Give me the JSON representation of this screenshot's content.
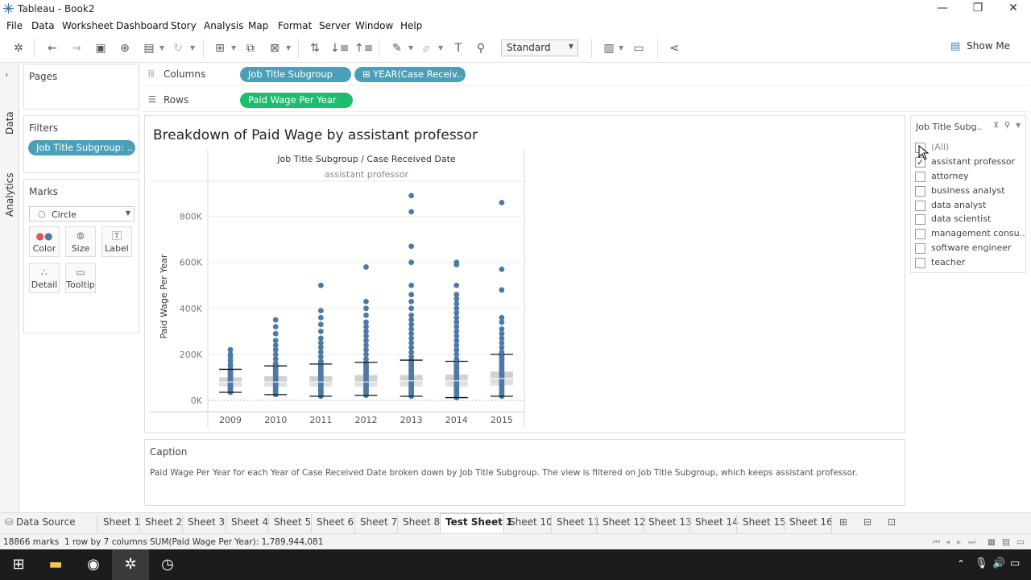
{
  "window": {
    "title": "Tableau - Book2"
  },
  "menu": [
    "File",
    "Data",
    "Worksheet",
    "Dashboard",
    "Story",
    "Analysis",
    "Map",
    "Format",
    "Server",
    "Window",
    "Help"
  ],
  "toolbar": {
    "fit": "Standard",
    "show_me": "Show Me"
  },
  "side_tabs": {
    "data": "Data",
    "analytics": "Analytics"
  },
  "cards": {
    "pages": "Pages",
    "filters": "Filters",
    "marks": "Marks"
  },
  "filter_pill": "Job Title Subgroup: ..",
  "marks": {
    "type": "Circle",
    "buttons": {
      "color": "Color",
      "size": "Size",
      "label": "Label",
      "detail": "Detail",
      "tooltip": "Tooltip"
    }
  },
  "shelves": {
    "columns_label": "Columns",
    "rows_label": "Rows",
    "columns_pills": [
      "Job Title Subgroup",
      "⊞ YEAR(Case Receiv.."
    ],
    "rows_pills": [
      "Paid Wage Per Year"
    ]
  },
  "view": {
    "title": "Breakdown of Paid Wage by assistant professor",
    "header": "Job Title Subgroup  /  Case Received Date",
    "subheader": "assistant professor"
  },
  "chart_data": {
    "type": "scatter",
    "title": "Breakdown of Paid Wage by assistant professor",
    "xlabel": "Job Title Subgroup  /  Case Received Date",
    "ylabel": "Paid Wage Per Year",
    "categories": [
      "2009",
      "2010",
      "2011",
      "2012",
      "2013",
      "2014",
      "2015"
    ],
    "y_ticks": [
      "0K",
      "200K",
      "400K",
      "600K",
      "800K"
    ],
    "ylim": [
      0,
      900000
    ],
    "grid": true,
    "boxes": [
      {
        "x": "2009",
        "low": 35000,
        "q1": 60000,
        "median": 80000,
        "q3": 100000,
        "high": 135000,
        "max_outlier": 220000
      },
      {
        "x": "2010",
        "low": 25000,
        "q1": 60000,
        "median": 80000,
        "q3": 105000,
        "high": 150000,
        "max_outlier": 350000
      },
      {
        "x": "2011",
        "low": 18000,
        "q1": 60000,
        "median": 80000,
        "q3": 105000,
        "high": 158000,
        "max_outlier": 500000
      },
      {
        "x": "2012",
        "low": 22000,
        "q1": 60000,
        "median": 80000,
        "q3": 110000,
        "high": 165000,
        "max_outlier": 580000
      },
      {
        "x": "2013",
        "low": 18000,
        "q1": 60000,
        "median": 85000,
        "q3": 110000,
        "high": 175000,
        "max_outlier": 890000
      },
      {
        "x": "2014",
        "low": 12000,
        "q1": 60000,
        "median": 85000,
        "q3": 112000,
        "high": 170000,
        "max_outlier": 600000
      },
      {
        "x": "2015",
        "low": 18000,
        "q1": 65000,
        "median": 95000,
        "q3": 125000,
        "high": 200000,
        "max_outlier": 860000
      }
    ],
    "outliers": [
      {
        "x": "2009",
        "y": [
          150000,
          160000,
          175000,
          190000,
          200000,
          220000
        ]
      },
      {
        "x": "2010",
        "y": [
          160000,
          180000,
          200000,
          220000,
          240000,
          260000,
          290000,
          320000,
          350000
        ]
      },
      {
        "x": "2011",
        "y": [
          170000,
          190000,
          210000,
          230000,
          250000,
          270000,
          300000,
          330000,
          360000,
          390000,
          500000
        ]
      },
      {
        "x": "2012",
        "y": [
          180000,
          200000,
          220000,
          240000,
          260000,
          280000,
          300000,
          320000,
          340000,
          370000,
          400000,
          430000,
          580000
        ]
      },
      {
        "x": "2013",
        "y": [
          190000,
          210000,
          230000,
          250000,
          270000,
          290000,
          310000,
          330000,
          350000,
          370000,
          400000,
          430000,
          460000,
          500000,
          600000,
          670000,
          820000,
          890000
        ]
      },
      {
        "x": "2014",
        "y": [
          180000,
          200000,
          220000,
          240000,
          260000,
          280000,
          300000,
          320000,
          340000,
          360000,
          380000,
          400000,
          420000,
          440000,
          460000,
          500000,
          590000,
          600000
        ]
      },
      {
        "x": "2015",
        "y": [
          210000,
          230000,
          250000,
          270000,
          290000,
          310000,
          340000,
          360000,
          480000,
          570000,
          860000
        ]
      }
    ]
  },
  "quick_filter": {
    "title": "Job Title Subg..",
    "items": [
      {
        "label": "(All)",
        "checked": false
      },
      {
        "label": "assistant professor",
        "checked": true
      },
      {
        "label": "attorney",
        "checked": false
      },
      {
        "label": "business analyst",
        "checked": false
      },
      {
        "label": "data analyst",
        "checked": false
      },
      {
        "label": "data scientist",
        "checked": false
      },
      {
        "label": "management consu..",
        "checked": false
      },
      {
        "label": "software engineer",
        "checked": false
      },
      {
        "label": "teacher",
        "checked": false
      }
    ]
  },
  "caption": {
    "title": "Caption",
    "text": "Paid Wage Per Year for each Year of Case Received Date broken down by Job Title Subgroup. The view is filtered on Job Title Subgroup, which keeps assistant professor."
  },
  "sheet_tabs": [
    "Data Source",
    "Sheet 1",
    "Sheet 2",
    "Sheet 3",
    "Sheet 4",
    "Sheet 5",
    "Sheet 6",
    "Sheet 7",
    "Sheet 8",
    "Test Sheet 1",
    "Sheet 10",
    "Sheet 11",
    "Sheet 12",
    "Sheet 13",
    "Sheet 14",
    "Sheet 15",
    "Sheet 16"
  ],
  "status": {
    "marks": "18866 marks",
    "rows_cols": "1 row by 7 columns",
    "sum": "SUM(Paid Wage Per Year): 1,789,944,081"
  },
  "colors": {
    "accent_pill_blue": "#4aa0b9",
    "accent_pill_green": "#1dbc6e",
    "mark": "#4e79a7"
  }
}
